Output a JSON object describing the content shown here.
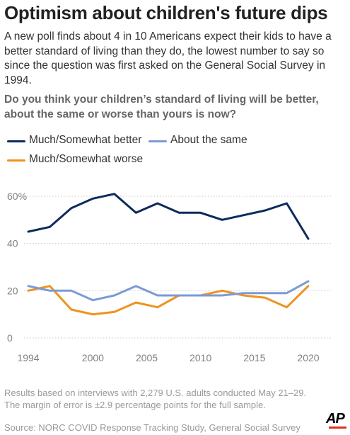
{
  "title": "Optimism about children's future dips",
  "subtitle": "A new poll finds about 4 in 10 Americans expect their kids to have a better standard of living than they do, the lowest number to say so since the question was first asked on the General Social Survey in 1994.",
  "question": "Do you think your children’s standard of living will be better, about the same or worse than yours is now?",
  "legend": {
    "better": "Much/Somewhat better",
    "same": "About the same",
    "worse": "Much/Somewhat worse"
  },
  "colors": {
    "better": "#0d2a5c",
    "same": "#7b9bd3",
    "worse": "#ee9321",
    "grid": "#c8c8c8",
    "logo_accent": "#e0301e"
  },
  "footnote": "Results based on interviews with 2,279 U.S. adults conducted May 21–29. The margin of error is ±2.9 percentage points for the full sample.",
  "source": "Source: NORC COVID Response Tracking Study, General Social Survey",
  "logo": "AP",
  "chart_data": {
    "type": "line",
    "x": [
      1994,
      1996,
      1998,
      2000,
      2002,
      2004,
      2006,
      2008,
      2010,
      2012,
      2014,
      2016,
      2018,
      2020
    ],
    "series": [
      {
        "name": "Much/Somewhat better",
        "values": [
          45,
          47,
          55,
          59,
          61,
          53,
          57,
          53,
          53,
          50,
          52,
          54,
          57,
          42
        ]
      },
      {
        "name": "About the same",
        "values": [
          22,
          20,
          20,
          16,
          18,
          22,
          18,
          18,
          18,
          18,
          19,
          19,
          19,
          24
        ]
      },
      {
        "name": "Much/Somewhat worse",
        "values": [
          20,
          22,
          12,
          10,
          11,
          15,
          13,
          18,
          18,
          20,
          18,
          17,
          13,
          22
        ]
      }
    ],
    "xticks": [
      1994,
      2000,
      2005,
      2010,
      2015,
      2020
    ],
    "xtick_labels": [
      "1994",
      "2000",
      "2005",
      "2010",
      "2015",
      "2020"
    ],
    "yticks": [
      0,
      20,
      40,
      60
    ],
    "ytick_labels": [
      "0",
      "20",
      "40",
      "60%"
    ],
    "xlim": [
      1994,
      2020
    ],
    "ylim": [
      0,
      60
    ],
    "grid": "horizontal dotted"
  }
}
